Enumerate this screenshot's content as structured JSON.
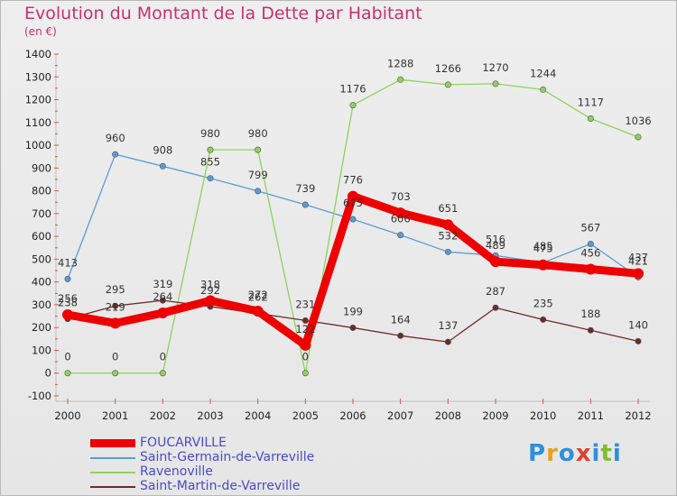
{
  "chart_data": {
    "type": "line",
    "title": "Evolution du Montant de la Dette par Habitant",
    "subtitle": "(en €)",
    "x": [
      "2000",
      "2001",
      "2002",
      "2003",
      "2004",
      "2005",
      "2006",
      "2007",
      "2008",
      "2009",
      "2010",
      "2011",
      "2012"
    ],
    "ylim": [
      -100,
      1400
    ],
    "yticks": [
      -100,
      0,
      100,
      200,
      300,
      400,
      500,
      600,
      700,
      800,
      900,
      1000,
      1100,
      1200,
      1300,
      1400
    ],
    "grid": false,
    "legend_position": "bottom-left",
    "series": [
      {
        "name": "FOUCARVILLE",
        "color": "#ee0000",
        "width": 9,
        "values": [
          256,
          219,
          264,
          318,
          272,
          122,
          776,
          703,
          651,
          489,
          475,
          456,
          437
        ]
      },
      {
        "name": "Saint-Germain-de-Varreville",
        "color": "#5b9bd5",
        "width": 1.3,
        "values": [
          413,
          960,
          908,
          855,
          799,
          739,
          675,
          606,
          532,
          516,
          485,
          567,
          421
        ]
      },
      {
        "name": "Ravenoville",
        "color": "#8ed35a",
        "width": 1.3,
        "values": [
          0,
          0,
          0,
          980,
          980,
          0,
          1176,
          1288,
          1266,
          1270,
          1244,
          1117,
          1036
        ]
      },
      {
        "name": "Saint-Martin-de-Varreville",
        "color": "#6b2b2b",
        "width": 1.3,
        "values": [
          238,
          295,
          319,
          292,
          262,
          231,
          199,
          164,
          137,
          287,
          235,
          188,
          140
        ]
      }
    ]
  },
  "logo_text": [
    "P",
    "r",
    "o",
    "x",
    "i",
    "t",
    "i"
  ]
}
